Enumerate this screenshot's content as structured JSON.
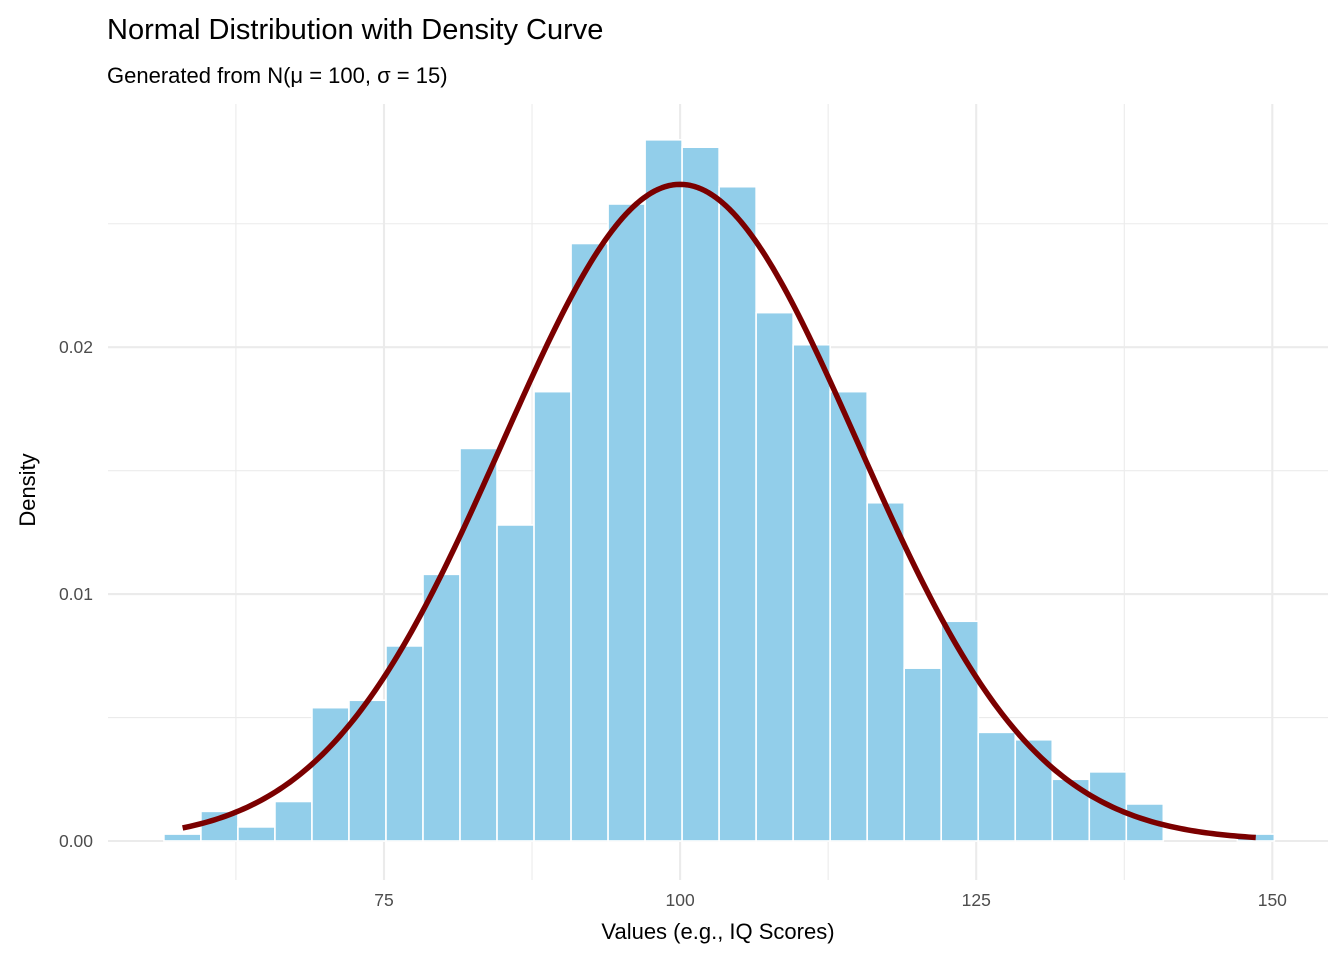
{
  "chart_data": {
    "type": "bar",
    "subtype": "histogram-with-density",
    "title": "Normal Distribution with Density Curve",
    "subtitle": "Generated from N(μ = 100, σ = 15)",
    "xlabel": "Values (e.g., IQ Scores)",
    "ylabel": "Density",
    "xlim": [
      51.7,
      154.7
    ],
    "ylim": [
      -0.00158,
      0.02985
    ],
    "x_ticks": [
      75,
      100,
      125,
      150
    ],
    "x_tick_labels": [
      "75",
      "100",
      "125",
      "150"
    ],
    "x_minor_ticks": [
      62.5,
      87.5,
      112.5,
      137.5
    ],
    "y_ticks": [
      0.0,
      0.01,
      0.02
    ],
    "y_tick_labels": [
      "0.00",
      "0.01",
      "0.02"
    ],
    "y_minor_ticks": [
      0.005,
      0.015,
      0.025
    ],
    "grid": true,
    "legend": "none",
    "bins": {
      "start": 56.42,
      "width": 3.125,
      "densities": [
        0.00028,
        0.0012,
        0.00057,
        0.0016,
        0.0054,
        0.0057,
        0.0079,
        0.0108,
        0.0159,
        0.0128,
        0.0182,
        0.0242,
        0.0258,
        0.0284,
        0.0281,
        0.0265,
        0.0214,
        0.0201,
        0.0182,
        0.0137,
        0.007,
        0.0089,
        0.0044,
        0.0041,
        0.0025,
        0.0028,
        0.0015,
        0.0,
        0.0,
        0.00028
      ]
    },
    "density_curve": {
      "distribution": "normal",
      "mean": 100,
      "sd": 15,
      "x_range": [
        58.0,
        148.6
      ]
    },
    "colors": {
      "bar_fill": "#92ceea",
      "curve": "#7b0000"
    }
  }
}
